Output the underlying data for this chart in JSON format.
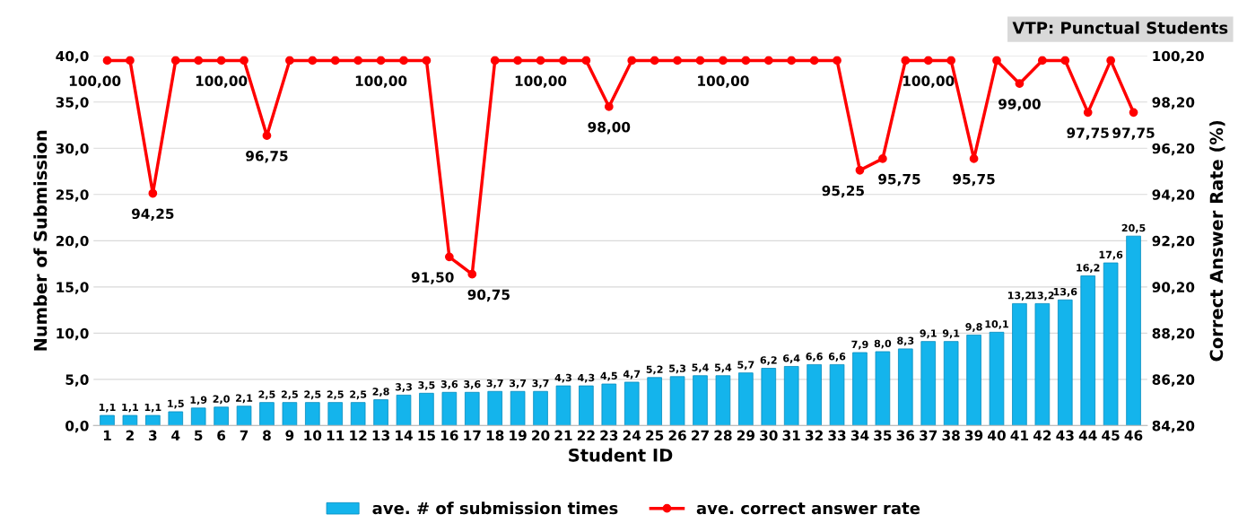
{
  "chart_data": {
    "type": "bar",
    "title": "VTP: Punctual Students",
    "xlabel": "Student ID",
    "ylabel": "Number of Submission",
    "y2label": "Correct Answer Rate (%)",
    "categories": [
      "1",
      "2",
      "3",
      "4",
      "5",
      "6",
      "7",
      "8",
      "9",
      "10",
      "11",
      "12",
      "13",
      "14",
      "15",
      "16",
      "17",
      "18",
      "19",
      "20",
      "21",
      "22",
      "23",
      "24",
      "25",
      "26",
      "27",
      "28",
      "29",
      "30",
      "31",
      "32",
      "33",
      "34",
      "35",
      "36",
      "37",
      "38",
      "39",
      "40",
      "41",
      "42",
      "43",
      "44",
      "45",
      "46"
    ],
    "series": [
      {
        "name": "ave. # of submission times",
        "color": "#14b4ec",
        "values": [
          1.1,
          1.1,
          1.1,
          1.5,
          1.9,
          2.0,
          2.1,
          2.5,
          2.5,
          2.5,
          2.5,
          2.5,
          2.8,
          3.3,
          3.5,
          3.6,
          3.6,
          3.7,
          3.7,
          3.7,
          4.3,
          4.3,
          4.5,
          4.7,
          5.2,
          5.3,
          5.4,
          5.4,
          5.7,
          6.2,
          6.4,
          6.6,
          6.6,
          7.9,
          8.0,
          8.3,
          9.1,
          9.1,
          9.8,
          10.1,
          13.2,
          13.2,
          13.6,
          16.2,
          17.6,
          20.5
        ],
        "value_labels": [
          "1,1",
          "1,1",
          "1,1",
          "1,5",
          "1,9",
          "2,0",
          "2,1",
          "2,5",
          "2,5",
          "2,5",
          "2,5",
          "2,5",
          "2,8",
          "3,3",
          "3,5",
          "3,6",
          "3,6",
          "3,7",
          "3,7",
          "3,7",
          "4,3",
          "4,3",
          "4,5",
          "4,7",
          "5,2",
          "5,3",
          "5,4",
          "5,4",
          "5,7",
          "6,2",
          "6,4",
          "6,6",
          "6,6",
          "7,9",
          "8,0",
          "8,3",
          "9,1",
          "9,1",
          "9,8",
          "10,1",
          "13,2",
          "13,2",
          "13,6",
          "16,2",
          "17,6",
          "20,5"
        ]
      },
      {
        "name": "ave. correct answer rate",
        "type": "line",
        "axis": "y2",
        "color": "#ff0000",
        "marker": "circle",
        "values": [
          100,
          100,
          94.25,
          100,
          100,
          100,
          100,
          96.75,
          100,
          100,
          100,
          100,
          100,
          100,
          100,
          91.5,
          90.75,
          100,
          100,
          100,
          100,
          100,
          98,
          100,
          100,
          100,
          100,
          100,
          100,
          100,
          100,
          100,
          100,
          95.25,
          95.75,
          100,
          100,
          100,
          95.75,
          100,
          99,
          100,
          100,
          97.75,
          100,
          97.75
        ],
        "value_labels": [
          "100,00",
          null,
          "94,25",
          null,
          null,
          "100,00",
          null,
          "96,75",
          null,
          null,
          null,
          null,
          "100,00",
          null,
          null,
          "91,50",
          "90,75",
          null,
          null,
          "100,00",
          null,
          null,
          "98,00",
          null,
          null,
          null,
          null,
          "100,00",
          null,
          null,
          null,
          null,
          null,
          "95,25",
          "95,75",
          null,
          "100,00",
          null,
          "95,75",
          null,
          "99,00",
          null,
          null,
          "97,75",
          null,
          "97,75"
        ]
      }
    ],
    "ylim": [
      0,
      40
    ],
    "yticks": [
      {
        "value": 0,
        "label": "0,0"
      },
      {
        "value": 5,
        "label": "5,0"
      },
      {
        "value": 10,
        "label": "10,0"
      },
      {
        "value": 15,
        "label": "15,0"
      },
      {
        "value": 20,
        "label": "20,0"
      },
      {
        "value": 25,
        "label": "25,0"
      },
      {
        "value": 30,
        "label": "30,0"
      },
      {
        "value": 35,
        "label": "35,0"
      },
      {
        "value": 40,
        "label": "40,0"
      }
    ],
    "y2lim": [
      84.2,
      100.2
    ],
    "y2ticks": [
      {
        "value": 84.2,
        "label": "84,20"
      },
      {
        "value": 86.2,
        "label": "86,20"
      },
      {
        "value": 88.2,
        "label": "88,20"
      },
      {
        "value": 90.2,
        "label": "90,20"
      },
      {
        "value": 92.2,
        "label": "92,20"
      },
      {
        "value": 94.2,
        "label": "94,20"
      },
      {
        "value": 96.2,
        "label": "96,20"
      },
      {
        "value": 98.2,
        "label": "98,20"
      },
      {
        "value": 100.2,
        "label": "100,20"
      }
    ],
    "grid": "y",
    "legend": "bottom"
  }
}
